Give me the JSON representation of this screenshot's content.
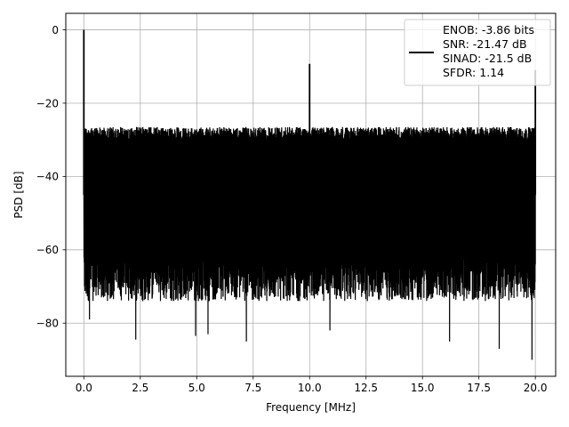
{
  "chart_data": {
    "type": "line",
    "xlabel": "Frequency [MHz]",
    "ylabel": "PSD [dB]",
    "xlim": [
      -0.8,
      20.9
    ],
    "ylim": [
      -94.5,
      4.5
    ],
    "xticks": [
      0.0,
      2.5,
      5.0,
      7.5,
      10.0,
      12.5,
      15.0,
      17.5,
      20.0
    ],
    "xtick_labels": [
      "0.0",
      "2.5",
      "5.0",
      "7.5",
      "10.0",
      "12.5",
      "15.0",
      "17.5",
      "20.0"
    ],
    "yticks": [
      0,
      -20,
      -40,
      -60,
      -80
    ],
    "ytick_labels": [
      "0",
      "−20",
      "−40",
      "−60",
      "−80"
    ],
    "grid": true,
    "legend_position": "top-right",
    "legend_entries": [
      "ENOB: -3.86 bits",
      "SNR: -21.47 dB",
      "SINAD: -21.5 dB",
      "SFDR: 1.14"
    ],
    "series": [
      {
        "color": "#000000",
        "noise_floor": {
          "x_range": [
            0.0,
            20.0
          ],
          "upper_db": -26.5,
          "lower_typical_db": -68,
          "lower_min_db": -90.5
        },
        "peaks": [
          {
            "x": 0.0,
            "y": 0.0
          },
          {
            "x": 10.0,
            "y": -9.3
          },
          {
            "x": 20.0,
            "y": -11.0
          }
        ],
        "deep_nulls": [
          {
            "x": 0.25,
            "y": -79
          },
          {
            "x": 2.3,
            "y": -84.5
          },
          {
            "x": 4.95,
            "y": -83.5
          },
          {
            "x": 5.5,
            "y": -83
          },
          {
            "x": 7.2,
            "y": -85
          },
          {
            "x": 10.9,
            "y": -82
          },
          {
            "x": 16.2,
            "y": -85
          },
          {
            "x": 18.4,
            "y": -87
          },
          {
            "x": 19.85,
            "y": -90
          }
        ]
      }
    ]
  }
}
